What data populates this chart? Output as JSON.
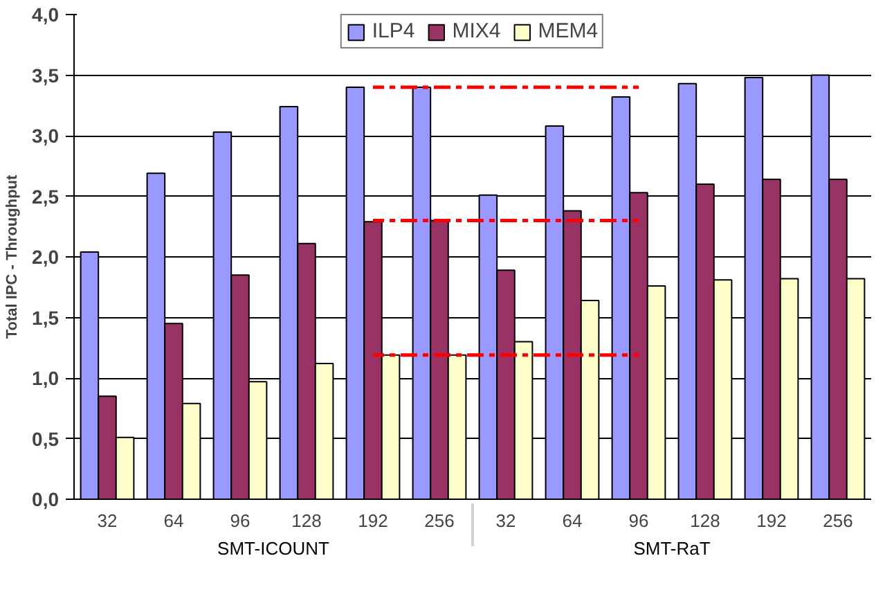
{
  "chart_data": {
    "type": "bar",
    "ylabel": "Total IPC - Throughput",
    "categories": [
      "32",
      "64",
      "96",
      "128",
      "192",
      "256",
      "32",
      "64",
      "96",
      "128",
      "192",
      "256"
    ],
    "annotations": [
      "SMT-ICOUNT",
      "SMT-RaT"
    ],
    "series": [
      {
        "name": "ILP4",
        "color": "#9999ff",
        "values": [
          2.04,
          2.69,
          3.03,
          3.24,
          3.4,
          3.4,
          2.51,
          3.08,
          3.32,
          3.43,
          3.48,
          3.5
        ]
      },
      {
        "name": "MIX4",
        "color": "#993366",
        "values": [
          0.85,
          1.45,
          1.85,
          2.11,
          2.29,
          2.3,
          1.89,
          2.38,
          2.53,
          2.6,
          2.64,
          2.64
        ]
      },
      {
        "name": "MEM4",
        "color": "#ffffcc",
        "values": [
          0.51,
          0.79,
          0.97,
          1.12,
          1.19,
          1.19,
          1.3,
          1.64,
          1.76,
          1.81,
          1.82,
          1.82
        ]
      },
      {
        "type": "line",
        "color": "#ff0000",
        "line_style": "dashed",
        "values": [
          null,
          null,
          null,
          null,
          3.4,
          3.4,
          3.4,
          3.4,
          3.4,
          null,
          null,
          null
        ]
      },
      {
        "type": "line",
        "color": "#ff0000",
        "line_style": "dashed",
        "values": [
          null,
          null,
          null,
          null,
          2.3,
          2.3,
          2.3,
          2.3,
          2.3,
          null,
          null,
          null
        ]
      },
      {
        "type": "line",
        "color": "#ff0000",
        "line_style": "dashed",
        "values": [
          null,
          null,
          null,
          null,
          1.19,
          1.19,
          1.19,
          1.19,
          1.19,
          null,
          null,
          null
        ]
      }
    ],
    "ylim": [
      0,
      4
    ],
    "yticks": [
      {
        "value": 0,
        "label": "0,0"
      },
      {
        "value": 0.5,
        "label": "0,5"
      },
      {
        "value": 1,
        "label": "1,0"
      },
      {
        "value": 1.5,
        "label": "1,5"
      },
      {
        "value": 2,
        "label": "2,0"
      },
      {
        "value": 2.5,
        "label": "2,5"
      },
      {
        "value": 3,
        "label": "3,0"
      },
      {
        "value": 3.5,
        "label": "3,5"
      },
      {
        "value": 4,
        "label": "4,0"
      }
    ],
    "grid": "y",
    "legend": "top"
  }
}
